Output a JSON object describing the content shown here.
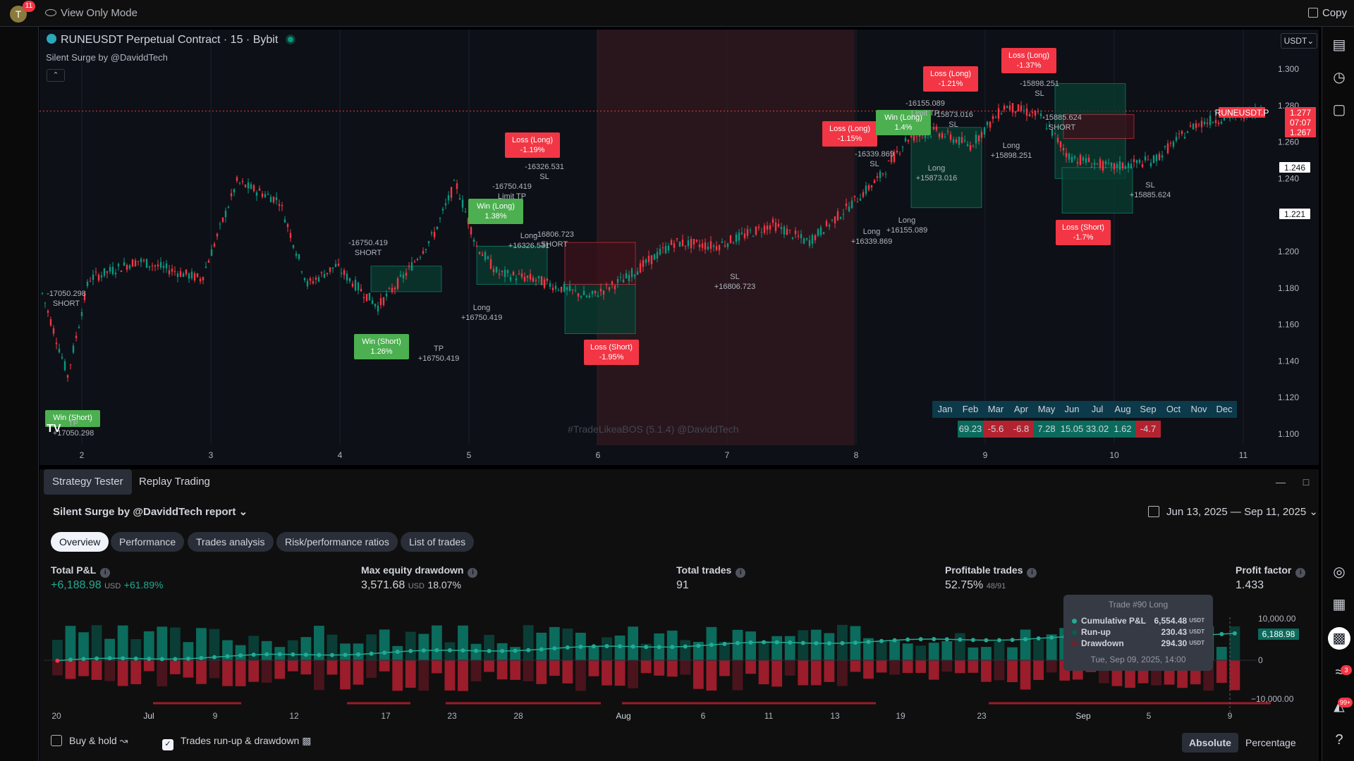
{
  "topbar": {
    "avatar_letter": "T",
    "avatar_badge": "11",
    "view_mode": "View Only Mode",
    "copy_label": "Copy"
  },
  "chart": {
    "title": "RUNEUSDT Perpetual Contract · 15 · Bybit",
    "strategy": "Silent Surge by @DaviddTech",
    "currency": "USDT",
    "watermark": "#TradeLikeaBOS (5.1.4) @DaviddTech",
    "price_ticks": [
      "1.300",
      "1.280",
      "1.260",
      "1.240",
      "1.200",
      "1.180",
      "1.160",
      "1.140",
      "1.120",
      "1.100"
    ],
    "price_labels": {
      "symbol": "RUNEUSDT.P",
      "last": "1.277",
      "countdown": "07:07",
      "low": "1.267",
      "level_a": "1.246",
      "level_b": "1.221"
    },
    "time_ticks": [
      "2",
      "3",
      "4",
      "5",
      "6",
      "7",
      "8",
      "9",
      "10",
      "11"
    ],
    "trade_labels": [
      {
        "text": "Win (Short)",
        "pct": "",
        "kind": "win"
      },
      {
        "text": "Win (Short)",
        "pct": "1.26%",
        "kind": "win"
      },
      {
        "text": "Win (Long)",
        "pct": "1.38%",
        "kind": "win"
      },
      {
        "text": "Loss (Long)",
        "pct": "-1.19%",
        "kind": "loss"
      },
      {
        "text": "Loss (Short)",
        "pct": "-1.95%",
        "kind": "loss"
      },
      {
        "text": "Loss (Long)",
        "pct": "-1.15%",
        "kind": "loss"
      },
      {
        "text": "Win (Long)",
        "pct": "1.4%",
        "kind": "win"
      },
      {
        "text": "Loss (Long)",
        "pct": "-1.21%",
        "kind": "loss"
      },
      {
        "text": "Loss (Long)",
        "pct": "-1.37%",
        "kind": "loss"
      },
      {
        "text": "Loss (Short)",
        "pct": "-1.7%",
        "kind": "loss"
      }
    ],
    "annotations": [
      "-17050.298",
      "SHORT",
      "TP",
      "+17050.298",
      "-16750.419",
      "SHORT",
      "TP",
      "+16750.419",
      "Long",
      "+16750.419",
      "-16750.419",
      "Limit TP",
      "-16326.531",
      "SL",
      "Long",
      "+16326.531",
      "-16806.723",
      "SHORT",
      "SL",
      "+16806.723",
      "-16339.869",
      "SL",
      "Long",
      "+16339.869",
      "Long",
      "+16155.089",
      "-16155.089",
      "Limit TP",
      "-15873.016",
      "SL",
      "Long",
      "+15873.016",
      "-15898.251",
      "SL",
      "Long",
      "+15898.251",
      "-15885.624",
      "SHORT",
      "SL",
      "+15885.624"
    ],
    "heatmap": {
      "months": [
        "Jan",
        "Feb",
        "Mar",
        "Apr",
        "May",
        "Jun",
        "Jul",
        "Aug",
        "Sep",
        "Oct",
        "Nov",
        "Dec"
      ],
      "values": [
        "",
        "69.23",
        "-5.6",
        "-6.8",
        "7.28",
        "15.05",
        "33.02",
        "1.62",
        "-4.7",
        "",
        "",
        ""
      ]
    }
  },
  "panel": {
    "tabs": [
      "Strategy Tester",
      "Replay Trading"
    ],
    "report_title": "Silent Surge by @DaviddTech report",
    "date_range": "Jun 13, 2025 — Sep 11, 2025",
    "subtabs": [
      "Overview",
      "Performance",
      "Trades analysis",
      "Risk/performance ratios",
      "List of trades"
    ],
    "metrics": [
      {
        "label": "Total P&L",
        "value": "+6,188.98",
        "unit": "USD",
        "extra": "+61.89%"
      },
      {
        "label": "Max equity drawdown",
        "value": "3,571.68",
        "unit": "USD",
        "extra": "18.07%"
      },
      {
        "label": "Total trades",
        "value": "91",
        "unit": "",
        "extra": ""
      },
      {
        "label": "Profitable trades",
        "value": "52.75%",
        "unit": "48/91",
        "extra": ""
      },
      {
        "label": "Profit factor",
        "value": "1.433",
        "unit": "",
        "extra": ""
      }
    ],
    "equity_axis": [
      "10,000.00",
      "0",
      "−10,000.00"
    ],
    "equity_badge": "6,188.98",
    "x_ticks": [
      "20",
      "Jul",
      "9",
      "12",
      "17",
      "23",
      "28",
      "Aug",
      "6",
      "11",
      "13",
      "19",
      "23",
      "Sep",
      "5",
      "9"
    ],
    "tooltip": {
      "title": "Trade #90 Long",
      "rows": [
        {
          "label": "Cumulative P&L",
          "value": "6,554.48",
          "unit": "USDT",
          "color": "#22ab94"
        },
        {
          "label": "Run-up",
          "value": "230.43",
          "unit": "USDT",
          "color": "#0b5c4f"
        },
        {
          "label": "Drawdown",
          "value": "294.30",
          "unit": "USDT",
          "color": "#7a1f28"
        }
      ],
      "date": "Tue, Sep 09, 2025, 14:00"
    },
    "bottom": {
      "buy_hold": "Buy & hold",
      "runup_dd": "Trades run-up & drawdown",
      "absolute": "Absolute",
      "percentage": "Percentage"
    }
  },
  "rightbar": {
    "badge_a": "3",
    "badge_b": "99+"
  },
  "colors": {
    "up": "#089981",
    "down": "#f23645",
    "bg": "#0d1016",
    "accent": "#2962ff"
  }
}
